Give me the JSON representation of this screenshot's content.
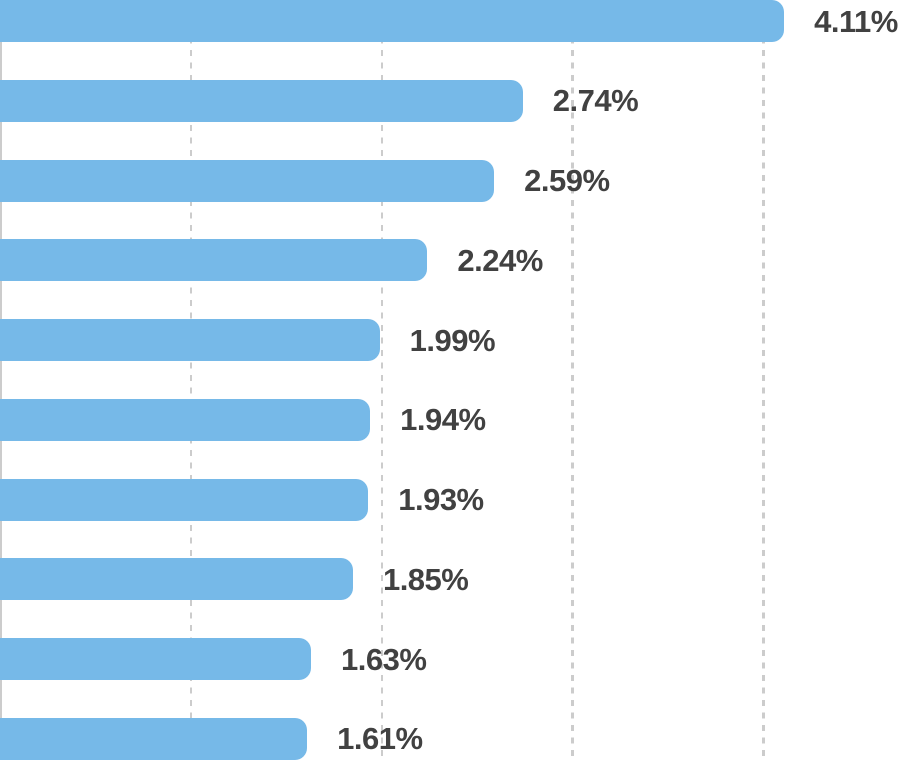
{
  "chart_data": {
    "type": "bar",
    "orientation": "horizontal",
    "title": "",
    "xlabel": "",
    "ylabel": "",
    "categories": [],
    "values": [
      4.11,
      2.74,
      2.59,
      2.24,
      1.99,
      1.94,
      1.93,
      1.85,
      1.63,
      1.61
    ],
    "labels": [
      "4.11%",
      "2.74%",
      "2.59%",
      "2.24%",
      "1.99%",
      "1.94%",
      "1.93%",
      "1.85%",
      "1.63%",
      "1.61%"
    ],
    "xlim": [
      0,
      4.733
    ],
    "gridlines_x": [
      1,
      2,
      3,
      4
    ],
    "grid_style": "dashed",
    "legend_position": "none",
    "colors": {
      "bar": "#76b9e8",
      "label": "#414141",
      "gridline": "#cccccc",
      "axis_line": "#cccccc"
    }
  }
}
